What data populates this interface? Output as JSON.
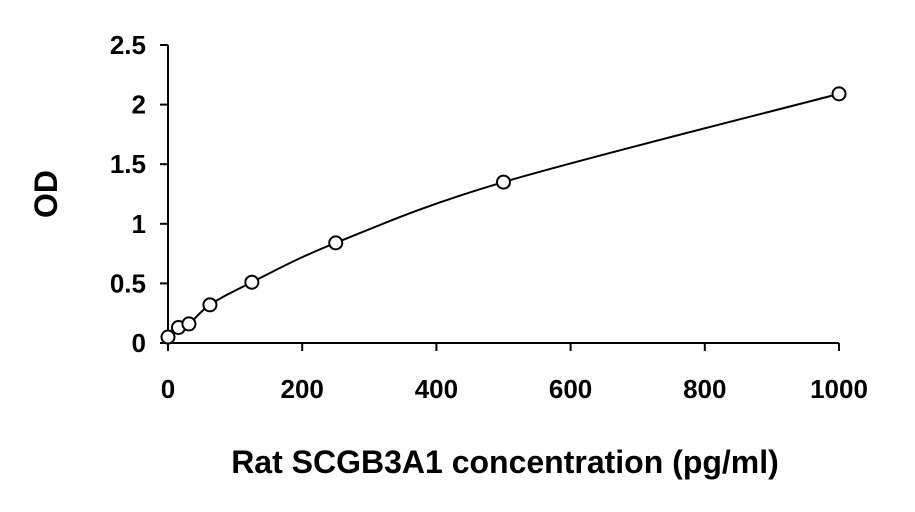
{
  "chart_data": {
    "type": "scatter",
    "xlabel": "Rat SCGB3A1 concentration (pg/ml)",
    "ylabel": "OD",
    "xlim": [
      0,
      1000
    ],
    "ylim": [
      0,
      2.5
    ],
    "x_ticks": [
      "0",
      "200",
      "400",
      "600",
      "800",
      "1000"
    ],
    "y_ticks": [
      "0",
      "0.5",
      "1",
      "1.5",
      "2",
      "2.5"
    ],
    "grid": false,
    "legend": "none",
    "marker": "open-circle",
    "trendline": "smooth-curve",
    "colors": {
      "axis": "#000000",
      "marker_stroke": "#000000",
      "marker_fill": "#ffffff",
      "curve": "#000000"
    },
    "series": [
      {
        "points": [
          {
            "x": 0,
            "y": 0.05
          },
          {
            "x": 15.6,
            "y": 0.13
          },
          {
            "x": 31.2,
            "y": 0.16
          },
          {
            "x": 62.5,
            "y": 0.32
          },
          {
            "x": 125,
            "y": 0.51
          },
          {
            "x": 250,
            "y": 0.84
          },
          {
            "x": 500,
            "y": 1.35
          },
          {
            "x": 1000,
            "y": 2.09
          }
        ]
      }
    ]
  }
}
